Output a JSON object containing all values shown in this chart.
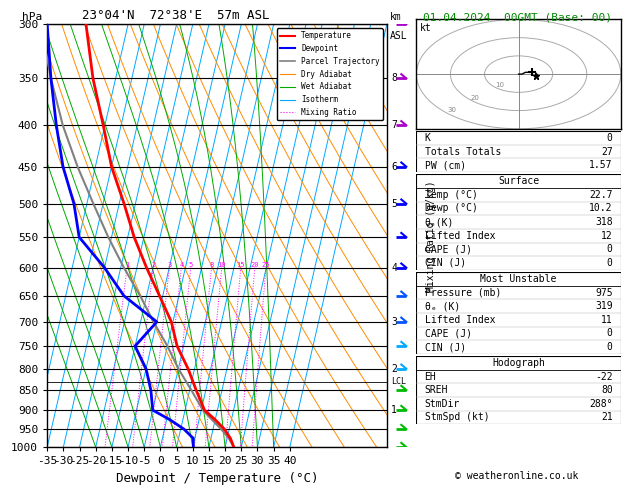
{
  "title_left": "23°04'N  72°38'E  57m ASL",
  "title_right": "01.04.2024  00GMT (Base: 00)",
  "xlabel": "Dewpoint / Temperature (°C)",
  "ylabel_left": "hPa",
  "copyright": "© weatheronline.co.uk",
  "pressure_levels": [
    300,
    350,
    400,
    450,
    500,
    550,
    600,
    650,
    700,
    750,
    800,
    850,
    900,
    950,
    1000
  ],
  "temp_color": "#ff0000",
  "dewp_color": "#0000ff",
  "parcel_color": "#808080",
  "dry_adiabat_color": "#ff8c00",
  "wet_adiabat_color": "#00aa00",
  "isotherm_color": "#00aaff",
  "mixing_ratio_color": "#ff00ff",
  "info_K": "0",
  "info_TT": "27",
  "info_PW": "1.57",
  "surface_temp": "22.7",
  "surface_dewp": "10.2",
  "surface_theta": "318",
  "surface_li": "12",
  "surface_cape": "0",
  "surface_cin": "0",
  "mu_pressure": "975",
  "mu_theta": "319",
  "mu_li": "11",
  "mu_cape": "0",
  "mu_cin": "0",
  "hodo_EH": "-22",
  "hodo_SREH": "80",
  "hodo_StmDir": "288°",
  "hodo_StmSpd": "21",
  "temp_profile_p": [
    1000,
    975,
    950,
    925,
    900,
    850,
    800,
    750,
    700,
    650,
    600,
    550,
    500,
    450,
    400,
    350,
    300
  ],
  "temp_profile_t": [
    22.7,
    21.0,
    18.5,
    15.0,
    11.0,
    7.0,
    3.0,
    -2.0,
    -5.5,
    -11.0,
    -17.0,
    -23.0,
    -28.5,
    -35.0,
    -40.5,
    -47.0,
    -53.0
  ],
  "dewp_profile_p": [
    1000,
    975,
    950,
    925,
    900,
    850,
    800,
    750,
    700,
    650,
    600,
    550,
    500,
    450,
    400,
    350,
    300
  ],
  "dewp_profile_t": [
    10.2,
    9.5,
    6.0,
    1.0,
    -5.0,
    -7.0,
    -10.0,
    -15.0,
    -10.0,
    -22.0,
    -30.0,
    -40.0,
    -44.0,
    -50.0,
    -55.0,
    -60.0,
    -65.0
  ],
  "parcel_profile_p": [
    1000,
    975,
    950,
    925,
    900,
    850,
    800,
    750,
    700,
    650,
    600,
    550,
    500,
    450,
    400,
    350,
    300
  ],
  "parcel_profile_t": [
    22.7,
    20.5,
    17.5,
    14.0,
    10.5,
    5.5,
    0.0,
    -5.0,
    -11.0,
    -17.0,
    -24.0,
    -31.0,
    -38.0,
    -45.5,
    -53.0,
    -60.0,
    -67.0
  ],
  "lcl_pressure": 830,
  "mixing_ratio_values": [
    1,
    2,
    3,
    4,
    5,
    8,
    10,
    15,
    20,
    25
  ],
  "km_ticks": [
    1,
    2,
    3,
    4,
    5,
    6,
    7,
    8
  ],
  "km_pressures": [
    900,
    800,
    700,
    600,
    500,
    450,
    400,
    350
  ],
  "skew_factor": 30,
  "p_min": 300,
  "p_max": 1000,
  "t_min": -35,
  "t_max": 40
}
